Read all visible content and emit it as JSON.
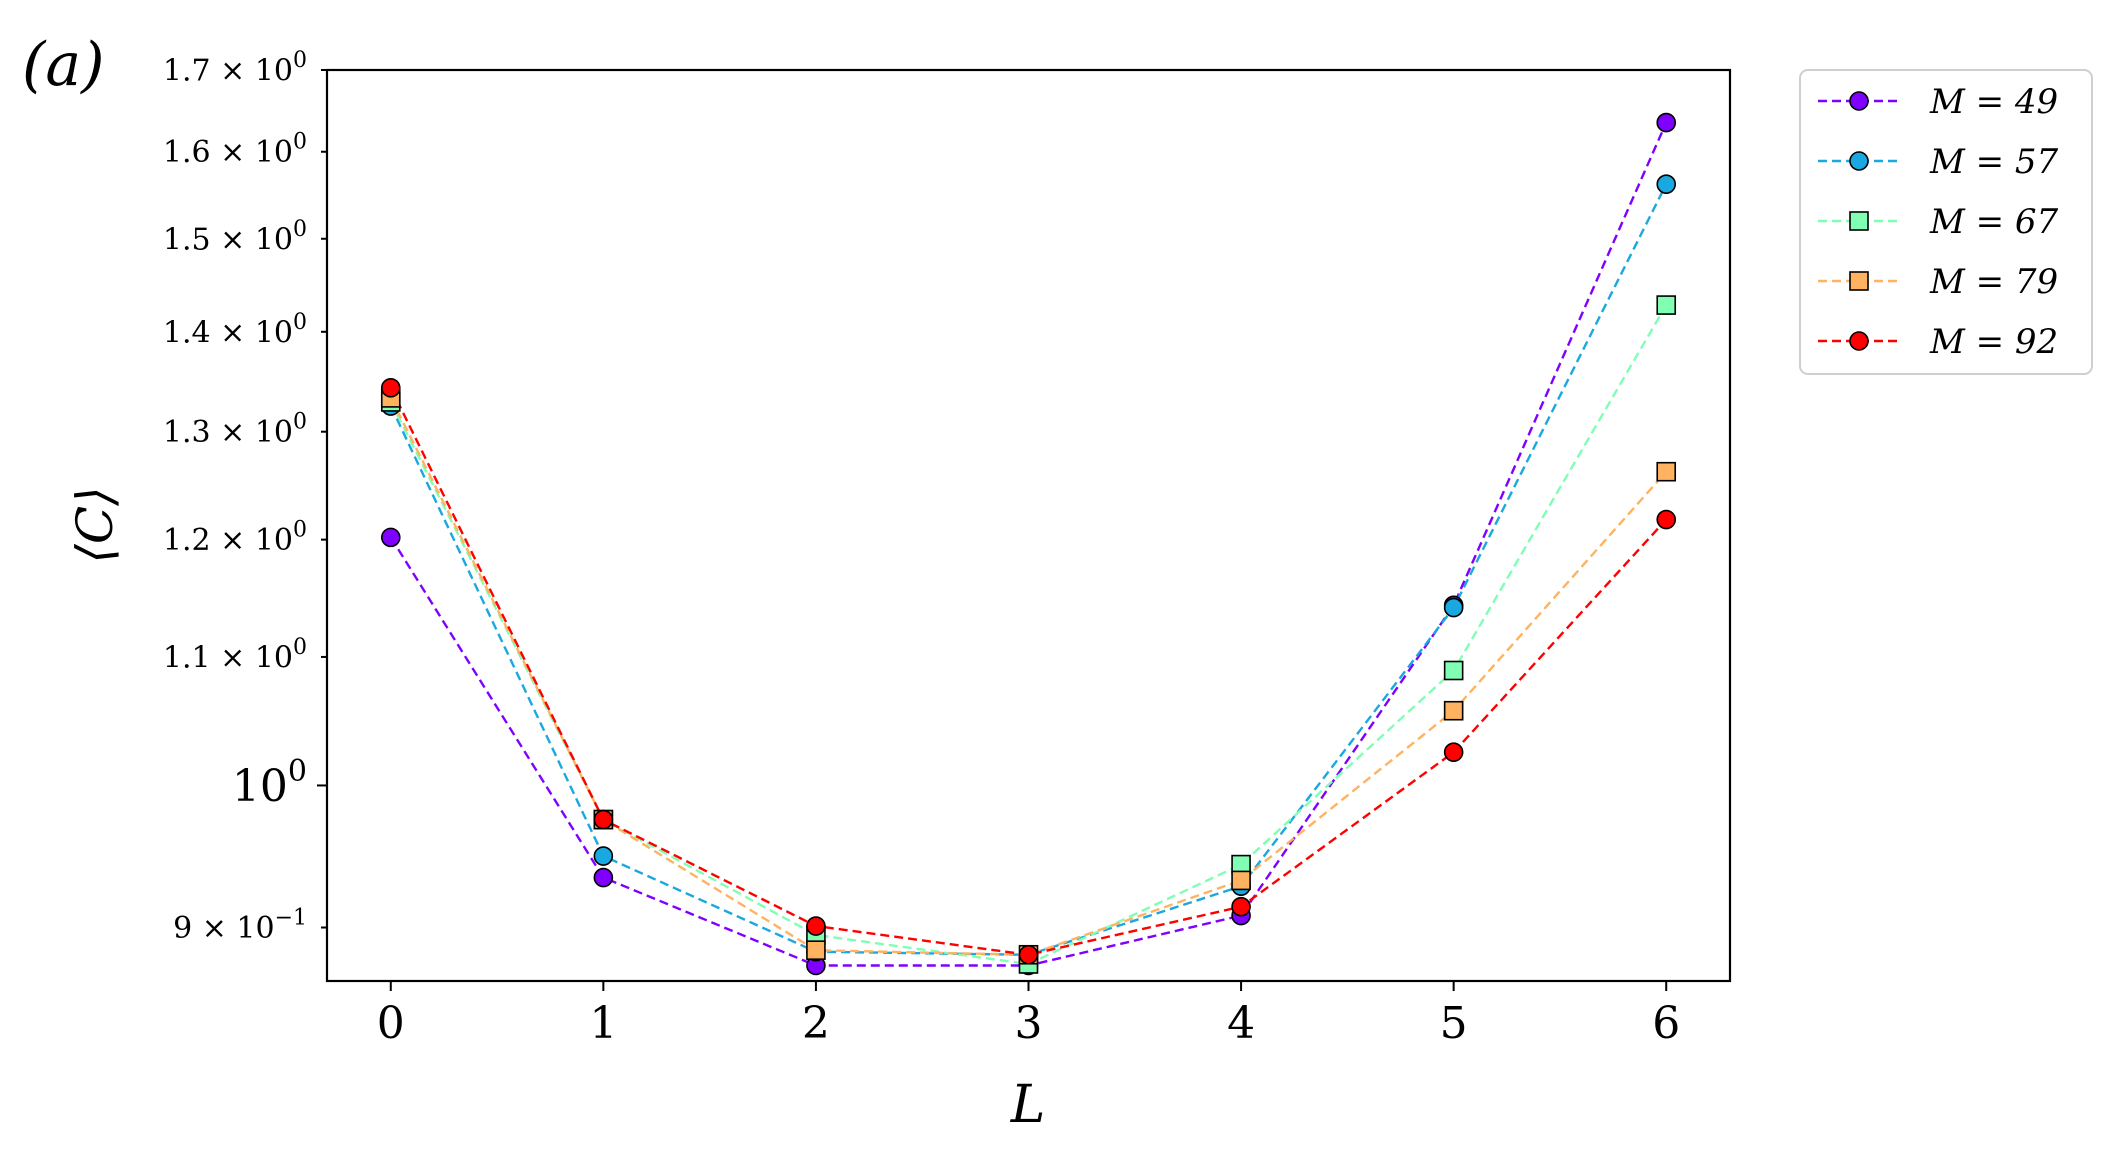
{
  "panel_label": "(a)",
  "chart_data": {
    "type": "line",
    "title": "",
    "xlabel": "L",
    "ylabel": "⟨C⟩",
    "yscale": "log",
    "xlim": [
      -0.3,
      6.3
    ],
    "ylim": [
      0.865,
      1.7
    ],
    "x": [
      0,
      1,
      2,
      3,
      4,
      5,
      6
    ],
    "x_ticks": [
      "0",
      "1",
      "2",
      "3",
      "4",
      "5",
      "6"
    ],
    "y_ticks": [
      {
        "value": 0.9,
        "mant": "9 × 10",
        "exp": "−1"
      },
      {
        "value": 1.0,
        "mant": "10",
        "exp": "0"
      },
      {
        "value": 1.1,
        "mant": "1.1 × 10",
        "exp": "0"
      },
      {
        "value": 1.2,
        "mant": "1.2 × 10",
        "exp": "0"
      },
      {
        "value": 1.3,
        "mant": "1.3 × 10",
        "exp": "0"
      },
      {
        "value": 1.4,
        "mant": "1.4 × 10",
        "exp": "0"
      },
      {
        "value": 1.5,
        "mant": "1.5 × 10",
        "exp": "0"
      },
      {
        "value": 1.6,
        "mant": "1.6 × 10",
        "exp": "0"
      },
      {
        "value": 1.7,
        "mant": "1.7 × 10",
        "exp": "0"
      }
    ],
    "grid": false,
    "legend_position": "outside-top-right",
    "series": [
      {
        "name": "M = 49",
        "color": "#8000ff",
        "marker": "circle",
        "values": [
          1.202,
          0.934,
          0.875,
          0.875,
          0.908,
          1.143,
          1.635
        ]
      },
      {
        "name": "M = 57",
        "color": "#1aa8e0",
        "marker": "circle",
        "values": [
          1.325,
          0.949,
          0.884,
          0.882,
          0.928,
          1.141,
          1.562
        ]
      },
      {
        "name": "M = 67",
        "color": "#80ffb4",
        "marker": "square",
        "values": [
          1.329,
          0.975,
          0.895,
          0.876,
          0.943,
          1.089,
          1.428
        ]
      },
      {
        "name": "M = 79",
        "color": "#ffb360",
        "marker": "square",
        "values": [
          1.333,
          0.975,
          0.885,
          0.882,
          0.932,
          1.057,
          1.262
        ]
      },
      {
        "name": "M = 92",
        "color": "#ff0000",
        "marker": "circle",
        "values": [
          1.343,
          0.975,
          0.901,
          0.882,
          0.914,
          1.025,
          1.218
        ]
      }
    ]
  }
}
